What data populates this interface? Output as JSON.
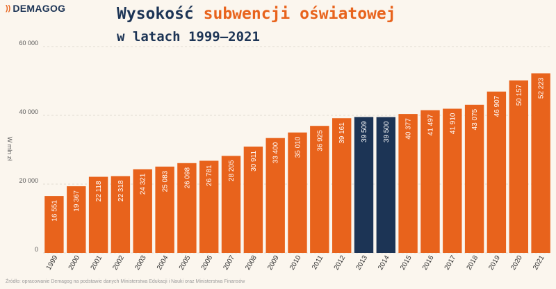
{
  "logo": {
    "mark": "))",
    "text": "DEMAGOG"
  },
  "title": {
    "part1": "Wysokość",
    "part2": "subwencji oświatowej",
    "line2": "w latach 1999–2021"
  },
  "footnote": "Źródło: opracowanie Demagog na podstawie danych Ministerstwa Edukacji i Nauki oraz Ministerstwa Finansów",
  "colors": {
    "orange": "#e8631c",
    "navy": "#1c3455",
    "background": "#fbf6ee"
  },
  "chart_data": {
    "type": "bar",
    "ylabel": "W mln zł",
    "ylim": [
      0,
      60000
    ],
    "yticks": [
      0,
      20000,
      40000,
      60000
    ],
    "ytick_labels": [
      "0",
      "20 000",
      "40 000",
      "60 000"
    ],
    "grid": true,
    "categories": [
      "1999",
      "2000",
      "2001",
      "2002",
      "2003",
      "2004",
      "2005",
      "2006",
      "2007",
      "2008",
      "2009",
      "2010",
      "2011",
      "2012",
      "2013",
      "2014",
      "2015",
      "2016",
      "2017",
      "2018",
      "2019",
      "2020",
      "2021"
    ],
    "values": [
      16551,
      19367,
      22118,
      22318,
      24321,
      25083,
      26098,
      26781,
      28205,
      30911,
      33400,
      35010,
      36925,
      39161,
      39509,
      39500,
      40377,
      41497,
      41910,
      43075,
      46907,
      50157,
      52223
    ],
    "value_labels": [
      "16 551",
      "19 367",
      "22 118",
      "22 318",
      "24 321",
      "25 083",
      "26 098",
      "26 781",
      "28 205",
      "30 911",
      "33 400",
      "35 010",
      "36 925",
      "39 161",
      "39 509",
      "39 500",
      "40 377",
      "41 497",
      "41 910",
      "43 075",
      "46 907",
      "50 157",
      "52 223"
    ],
    "highlighted": [
      "2013",
      "2014"
    ]
  }
}
